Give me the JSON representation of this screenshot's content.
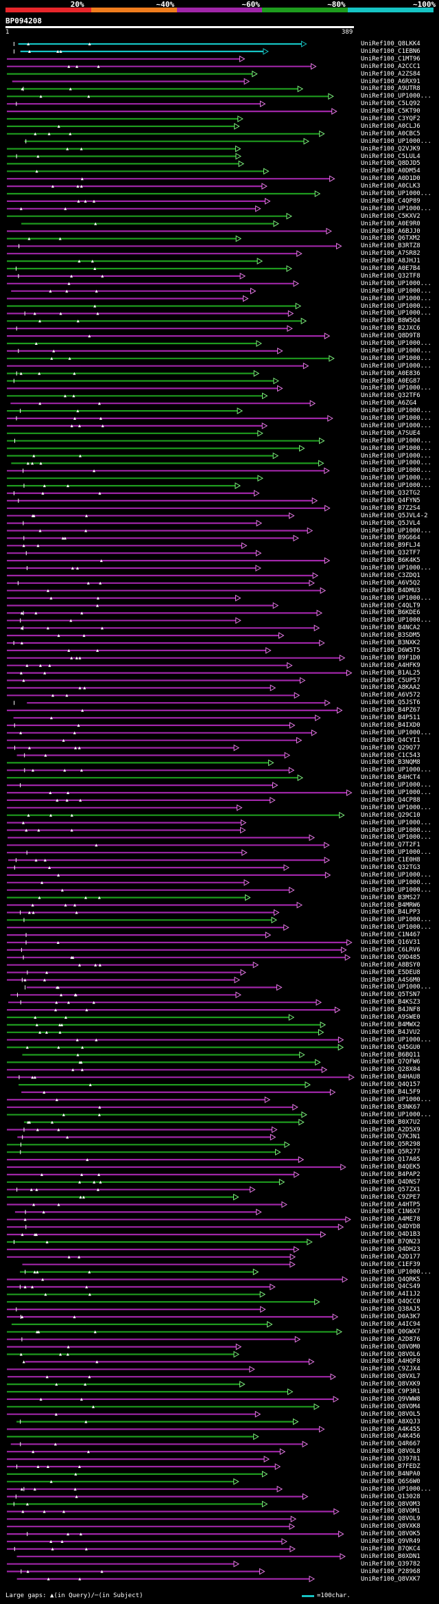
{
  "legend": {
    "segments": [
      {
        "label": "20%",
        "color": "#e8262b"
      },
      {
        "label": "~40%",
        "color": "#f07d1e"
      },
      {
        "label": "~60%",
        "color": "#a026a8"
      },
      {
        "label": "~80%",
        "color": "#1e9c1e"
      },
      {
        "label": "~100%",
        "color": "#16c4c4"
      }
    ]
  },
  "query": {
    "name": "BP094208",
    "start_label": "1",
    "end_label": "389",
    "length": 389
  },
  "footer": {
    "large_gaps_text": "Large gaps: ▲(in Query)/─(in Subject)",
    "scale_text": "=100char.",
    "scale_color": "#16c4c4"
  },
  "colors": {
    "cyan": "#16c4c4",
    "green": "#1e9c1e",
    "magenta": "#a026a8",
    "light_green": "#7df07d",
    "light_magenta": "#e67ae6"
  },
  "hits": [
    "UniRef100_Q8LKK4",
    "UniRef100_C1EBN6",
    "UniRef100_C1MT96",
    "UniRef100_A2CCC1",
    "UniRef100_A2ZS84",
    "UniRef100_A6RX91",
    "UniRef100_A9UTR8",
    "UniRef100_UP1000...",
    "UniRef100_C5LQ92",
    "UniRef100_C5KT90",
    "UniRef100_C3YQF2",
    "UniRef100_A0CLJ6",
    "UniRef100_A0CBC5",
    "UniRef100_UP1000...",
    "UniRef100_Q2VJK9",
    "UniRef100_C5LUL4",
    "UniRef100_Q8DJD5",
    "UniRef100_A0DM54",
    "UniRef100_A0D1D0",
    "UniRef100_A0CLK3",
    "UniRef100_UP1000...",
    "UniRef100_C4QP89",
    "UniRef100_UP1000...",
    "UniRef100_C5KXV2",
    "UniRef100_A0E9R0",
    "UniRef100_A6BJJ0",
    "UniRef100_Q6TXM2",
    "UniRef100_B3RTZ8",
    "UniRef100_A7SR82",
    "UniRef100_A8JHJ1",
    "UniRef100_A0E7B4",
    "UniRef100_Q32TF8",
    "UniRef100_UP1000...",
    "UniRef100_UP1000...",
    "UniRef100_UP1000...",
    "UniRef100_UP1000...",
    "UniRef100_UP1000...",
    "UniRef100_B8W5Q4",
    "UniRef100_B2JXC6",
    "UniRef100_Q8D9T8",
    "UniRef100_UP1000...",
    "UniRef100_UP1000...",
    "UniRef100_UP1000...",
    "UniRef100_UP1000...",
    "UniRef100_A0E836",
    "UniRef100_A0EG87",
    "UniRef100_UP1000...",
    "UniRef100_Q32TF6",
    "UniRef100_A6ZG4",
    "UniRef100_UP1000...",
    "UniRef100_UP1000...",
    "UniRef100_UP1000...",
    "UniRef100_A7SUE4",
    "UniRef100_UP1000...",
    "UniRef100_UP1000...",
    "UniRef100_UP1000...",
    "UniRef100_UP1000...",
    "UniRef100_UP1000...",
    "UniRef100_UP1000...",
    "UniRef100_UP1000...",
    "UniRef100_Q32TG2",
    "UniRef100_Q4FYN5",
    "UniRef100_B7Z2S4",
    "UniRef100_Q5JVL4-2",
    "UniRef100_Q5JVL4",
    "UniRef100_UP1000...",
    "UniRef100_B9G664",
    "UniRef100_B9FLJ4",
    "UniRef100_Q32TF7",
    "UniRef100_B6K4K5",
    "UniRef100_UP1000...",
    "UniRef100_C3ZDQ1",
    "UniRef100_A6V5Q2",
    "UniRef100_B4DMU3",
    "UniRef100_UP1000...",
    "UniRef100_C4QLT9",
    "UniRef100_B6KDE6",
    "UniRef100_UP1000...",
    "UniRef100_B4NCA2",
    "UniRef100_B3SDM5",
    "UniRef100_B3NXK2",
    "UniRef100_D6W5T5",
    "UniRef100_B9F1D0",
    "UniRef100_A4HFK9",
    "UniRef100_B1AL25",
    "UniRef100_C5UP57",
    "UniRef100_A8KAA2",
    "UniRef100_A6V572",
    "UniRef100_Q5JST6",
    "UniRef100_B4PZ67",
    "UniRef100_B4P511",
    "UniRef100_B4IXD0",
    "UniRef100_UP1000...",
    "UniRef100_Q4CYI1",
    "UniRef100_Q29Q77",
    "UniRef100_C1C543",
    "UniRef100_B3NQM8",
    "UniRef100_UP1000...",
    "UniRef100_B4HCT4",
    "UniRef100_UP1000...",
    "UniRef100_UP1000...",
    "UniRef100_Q4CP88",
    "UniRef100_UP1000...",
    "UniRef100_Q29C10",
    "UniRef100_UP1000...",
    "UniRef100_UP1000...",
    "UniRef100_UP1000...",
    "UniRef100_Q7T2F1",
    "UniRef100_UP1000...",
    "UniRef100_C1E0H8",
    "UniRef100_Q32TG3",
    "UniRef100_UP1000...",
    "UniRef100_UP1000...",
    "UniRef100_UP1000...",
    "UniRef100_B3MS27",
    "UniRef100_B4MRW6",
    "UniRef100_B4LPP3",
    "UniRef100_UP1000...",
    "UniRef100_UP1000...",
    "UniRef100_C1N467",
    "UniRef100_Q16V31",
    "UniRef100_C6LRV6",
    "UniRef100_Q9D485",
    "UniRef100_A8BSY0",
    "UniRef100_E5DEU8",
    "UniRef100_A4S6M0",
    "UniRef100_UP1000...",
    "UniRef100_Q5TSN7",
    "UniRef100_B4KSZ3",
    "UniRef100_B4JNF8",
    "UniRef100_A9SWE0",
    "UniRef100_B4MWX2",
    "UniRef100_B4JVU2",
    "UniRef100_UP1000...",
    "UniRef100_Q45GU0",
    "UniRef100_B6BQ11",
    "UniRef100_Q7QFW6",
    "UniRef100_Q28X04",
    "UniRef100_B4HAU8",
    "UniRef100_Q4Q157",
    "UniRef100_B4L5F9",
    "UniRef100_UP1000...",
    "UniRef100_B3NK67",
    "UniRef100_UP1000...",
    "UniRef100_B0X7U2",
    "UniRef100_A2D5X9",
    "UniRef100_Q7KJN1",
    "UniRef100_Q5R298",
    "UniRef100_Q5R277",
    "UniRef100_Q17A05",
    "UniRef100_B4QEK5",
    "UniRef100_B4PAP2",
    "UniRef100_Q4DNS7",
    "UniRef100_Q57ZX1",
    "UniRef100_C9ZPE7",
    "UniRef100_A4HTP5",
    "UniRef100_C1N6X7",
    "UniRef100_A4ME78",
    "UniRef100_Q4DYD8",
    "UniRef100_Q4D1B3",
    "UniRef100_B7QN23",
    "UniRef100_Q4DH23",
    "UniRef100_A2D177",
    "UniRef100_C1EF39",
    "UniRef100_UP1000...",
    "UniRef100_Q4QRK5",
    "UniRef100_Q4CS49",
    "UniRef100_A4I1J2",
    "UniRef100_Q4QCC0",
    "UniRef100_Q38AJ5",
    "UniRef100_D0A3K7",
    "UniRef100_A4IC94",
    "UniRef100_Q0GWX7",
    "UniRef100_A2D876",
    "UniRef100_Q8VOM0",
    "UniRef100_Q8VOL6",
    "UniRef100_A4HQF8",
    "UniRef100_C9ZJX4",
    "UniRef100_Q8VXL7",
    "UniRef100_Q8VXK9",
    "UniRef100_C9P3R1",
    "UniRef100_Q9VWW8",
    "UniRef100_Q8VOM4",
    "UniRef100_Q8VOL5",
    "UniRef100_A8XQJ3",
    "UniRef100_A4K455",
    "UniRef100_A4K456",
    "UniRef100_Q4R667",
    "UniRef100_Q8VOL8",
    "UniRef100_Q39781",
    "UniRef100_B7FEDZ",
    "UniRef100_B4NPA0",
    "UniRef100_Q6S6W0",
    "UniRef100_UP1000...",
    "UniRef100_Q13028",
    "UniRef100_Q8VOM3",
    "UniRef100_Q8VOM1",
    "UniRef100_Q8VOL9",
    "UniRef100_Q8VXK8",
    "UniRef100_Q8VOK5",
    "UniRef100_Q9VR49",
    "UniRef100_B7QKC4",
    "UniRef100_B0XDN1",
    "UniRef100_Q39782",
    "UniRef100_P28968",
    "UniRef100_Q8VXK7"
  ]
}
